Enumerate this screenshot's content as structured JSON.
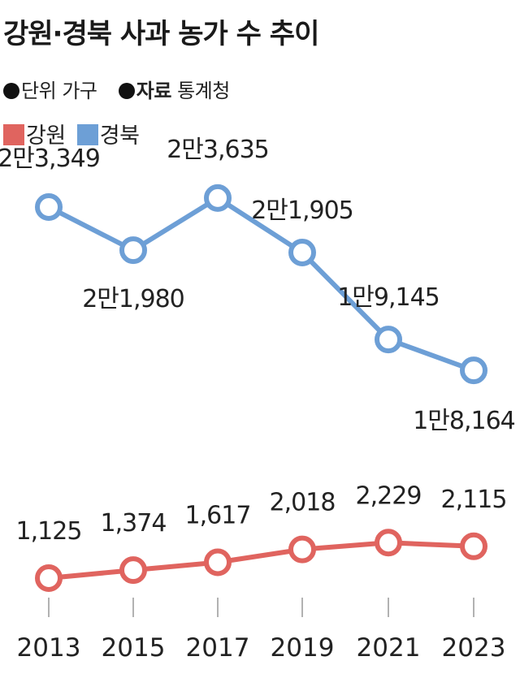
{
  "title": "강원·경북 사과 농가 수 추이",
  "meta": {
    "unit_label": "단위",
    "unit_value": "가구",
    "source_label": "자료",
    "source_value": "통계청"
  },
  "colors": {
    "gangwon": "#e0645f",
    "gyeongbuk": "#6d9fd6",
    "axis": "#999999"
  },
  "chart_data": {
    "type": "line",
    "categories": [
      "2013",
      "2015",
      "2017",
      "2019",
      "2021",
      "2023"
    ],
    "series": [
      {
        "name": "경북",
        "values": [
          23349,
          21980,
          23635,
          21905,
          19145,
          18164
        ],
        "labels": [
          "2만3,349",
          "2만1,980",
          "2만3,635",
          "2만1,905",
          "1만9,145",
          "1만8,164"
        ]
      },
      {
        "name": "강원",
        "values": [
          1125,
          1374,
          1617,
          2018,
          2229,
          2115
        ],
        "labels": [
          "1,125",
          "1,374",
          "1,617",
          "2,018",
          "2,229",
          "2,115"
        ]
      }
    ],
    "legend": [
      "강원",
      "경북"
    ],
    "legend_position": "top-left",
    "grid": false
  }
}
